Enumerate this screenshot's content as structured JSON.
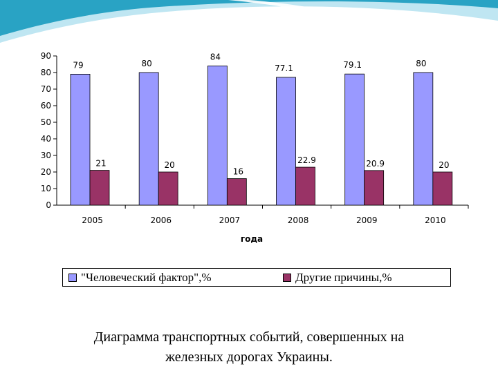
{
  "colors": {
    "series1": "#9999ff",
    "series2": "#993366",
    "axis": "#000000",
    "swoosh_dark": "#29a3c4",
    "swoosh_light": "#bfe6f2"
  },
  "chart_data": {
    "type": "bar",
    "categories": [
      "2005",
      "2006",
      "2007",
      "2008",
      "2009",
      "2010"
    ],
    "series": [
      {
        "name": "\"Человеческий фактор\",%",
        "values": [
          79,
          80,
          84,
          77.1,
          79.1,
          80
        ],
        "labels": [
          "79",
          "80",
          "84",
          "77.1",
          "79.1",
          "80"
        ]
      },
      {
        "name": "Другие причины,%",
        "values": [
          21,
          20,
          16,
          22.9,
          20.9,
          20
        ],
        "labels": [
          "21",
          "20",
          "16",
          "22.9",
          "20.9",
          "20"
        ]
      }
    ],
    "xlabel": "года",
    "ylabel": "",
    "ylim": [
      0,
      90
    ],
    "yticks": [
      0,
      10,
      20,
      30,
      40,
      50,
      60,
      70,
      80,
      90
    ],
    "grid": false,
    "legend_position": "bottom"
  },
  "caption": {
    "line1": "Диаграмма транспортных событий, совершенных на",
    "line2": "железных дорогах Украины."
  }
}
